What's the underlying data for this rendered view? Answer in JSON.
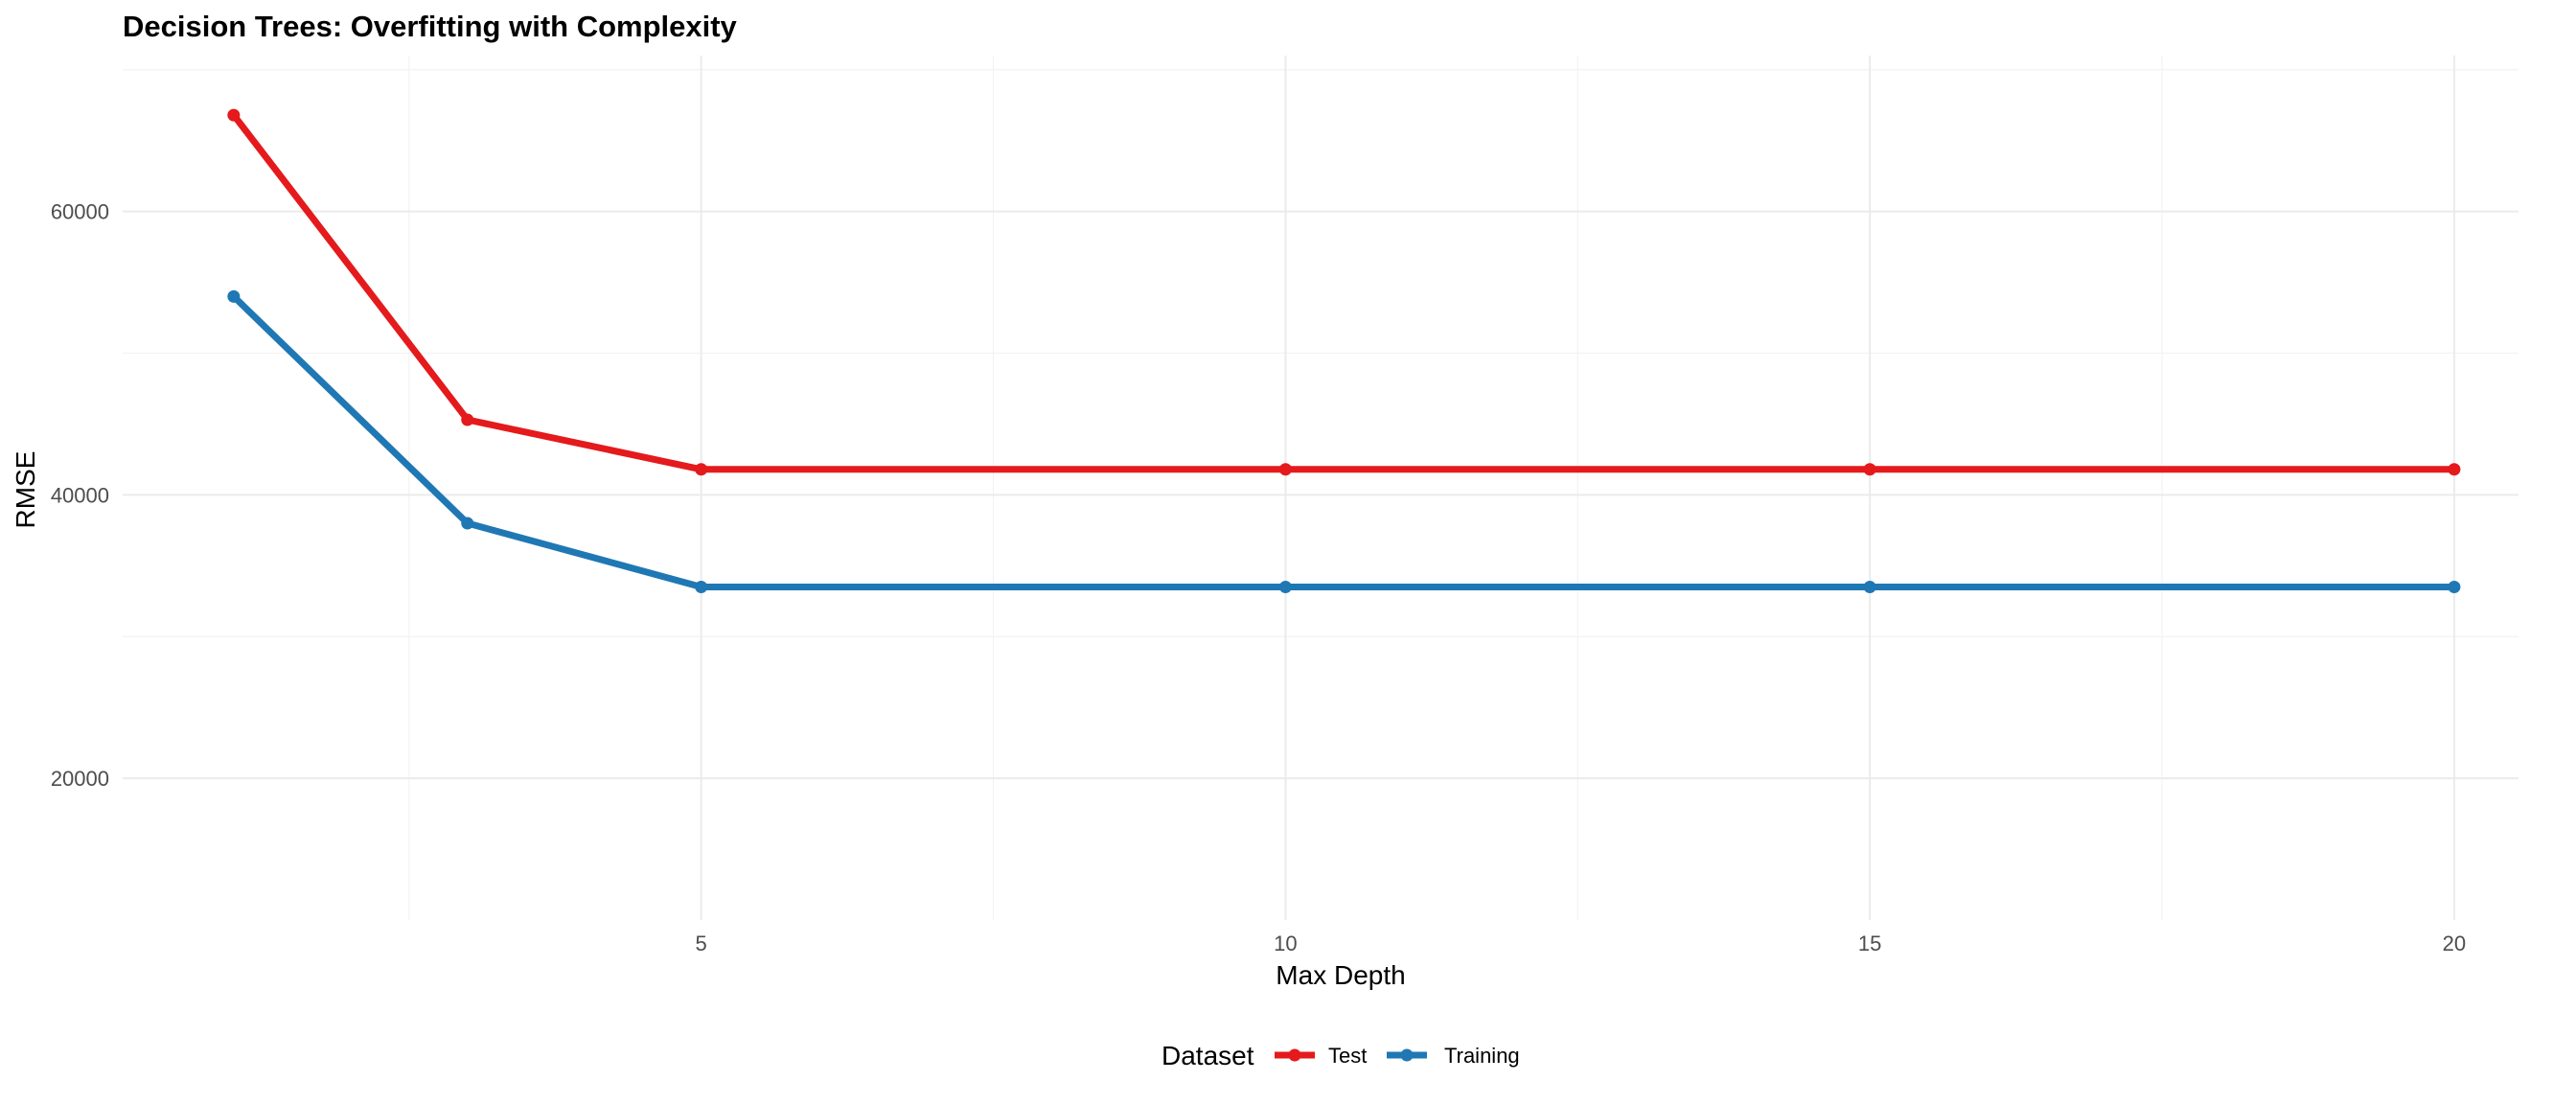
{
  "chart_data": {
    "type": "line",
    "title": "Decision Trees: Overfitting with Complexity",
    "xlabel": "Max Depth",
    "ylabel": "RMSE",
    "x": [
      1,
      3,
      5,
      10,
      15,
      20
    ],
    "xlim": [
      0.05,
      20.55
    ],
    "ylim": [
      10000,
      71000
    ],
    "x_ticks": [
      5,
      10,
      15,
      20
    ],
    "x_tick_labels": [
      "5",
      "10",
      "15",
      "20"
    ],
    "y_ticks": [
      20000,
      40000,
      60000
    ],
    "y_tick_labels": [
      "20000",
      "40000",
      "60000"
    ],
    "grid": true,
    "legend": {
      "title": "Dataset",
      "position": "bottom"
    },
    "series": [
      {
        "name": "Test",
        "color": "#e41a1c",
        "values": [
          66800,
          45300,
          41800,
          41800,
          41800,
          41800
        ]
      },
      {
        "name": "Training",
        "color": "#1f78b4",
        "values": [
          54000,
          38000,
          33500,
          33500,
          33500,
          33500
        ]
      }
    ]
  }
}
